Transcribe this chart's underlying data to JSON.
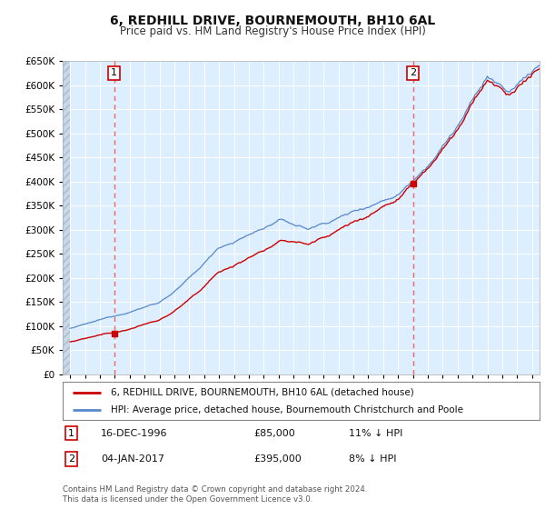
{
  "title": "6, REDHILL DRIVE, BOURNEMOUTH, BH10 6AL",
  "subtitle": "Price paid vs. HM Land Registry's House Price Index (HPI)",
  "legend_line1": "6, REDHILL DRIVE, BOURNEMOUTH, BH10 6AL (detached house)",
  "legend_line2": "HPI: Average price, detached house, Bournemouth Christchurch and Poole",
  "footer": "Contains HM Land Registry data © Crown copyright and database right 2024.\nThis data is licensed under the Open Government Licence v3.0.",
  "transactions": [
    {
      "label": "1",
      "date": "16-DEC-1996",
      "price": 85000,
      "pct": "11%",
      "direction": "↓",
      "year": 1996.96
    },
    {
      "label": "2",
      "date": "04-JAN-2017",
      "price": 395000,
      "pct": "8%",
      "direction": "↓",
      "year": 2017.01
    }
  ],
  "ylim": [
    0,
    650000
  ],
  "yticks": [
    0,
    50000,
    100000,
    150000,
    200000,
    250000,
    300000,
    350000,
    400000,
    450000,
    500000,
    550000,
    600000,
    650000
  ],
  "xlim_start": 1993.5,
  "xlim_end": 2025.5,
  "background_color": "#ffffff",
  "plot_bg_color": "#ddeeff",
  "grid_color": "#c8d8e8",
  "red_line_color": "#cc0000",
  "blue_line_color": "#5588cc",
  "marker_color": "#cc0000",
  "transaction_line_color": "#dd4444",
  "hatch_bg_color": "#c8d8e8"
}
